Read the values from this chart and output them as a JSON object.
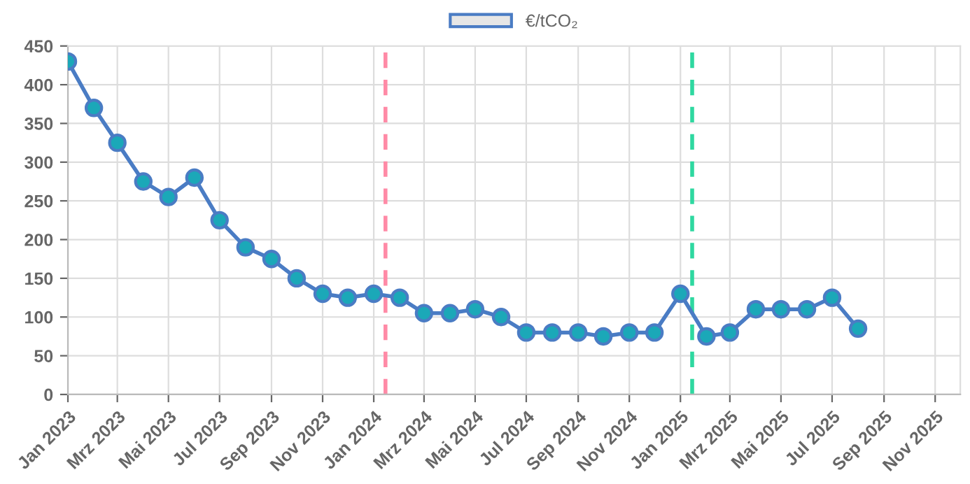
{
  "chart_data": {
    "type": "line",
    "x": [
      "2023-01",
      "2023-02",
      "2023-03",
      "2023-04",
      "2023-05",
      "2023-06",
      "2023-07",
      "2023-08",
      "2023-09",
      "2023-10",
      "2023-11",
      "2023-12",
      "2024-01",
      "2024-02",
      "2024-03",
      "2024-04",
      "2024-05",
      "2024-06",
      "2024-07",
      "2024-08",
      "2024-09",
      "2024-10",
      "2024-11",
      "2024-12",
      "2025-01",
      "2025-02",
      "2025-03",
      "2025-04",
      "2025-05",
      "2025-06",
      "2025-07",
      "2025-08"
    ],
    "series": [
      {
        "name": "€/tCO₂",
        "color": "#4a7cc4",
        "values": [
          430,
          370,
          325,
          275,
          255,
          280,
          225,
          190,
          175,
          150,
          130,
          125,
          130,
          125,
          105,
          105,
          110,
          100,
          80,
          80,
          80,
          75,
          80,
          80,
          130,
          75,
          80,
          110,
          110,
          110,
          125,
          85
        ]
      }
    ],
    "marker": "circle",
    "line_style": "solid",
    "legend": "top",
    "grid": true,
    "xlim": [
      "2023-01",
      "2025-12"
    ],
    "xticks": [
      {
        "value": "2023-01",
        "label": "Jan 2023"
      },
      {
        "value": "2023-03",
        "label": "Mrz 2023"
      },
      {
        "value": "2023-05",
        "label": "Mai 2023"
      },
      {
        "value": "2023-07",
        "label": "Jul 2023"
      },
      {
        "value": "2023-09",
        "label": "Sep 2023"
      },
      {
        "value": "2023-11",
        "label": "Nov 2023"
      },
      {
        "value": "2024-01",
        "label": "Jan 2024"
      },
      {
        "value": "2024-03",
        "label": "Mrz 2024"
      },
      {
        "value": "2024-05",
        "label": "Mai 2024"
      },
      {
        "value": "2024-07",
        "label": "Jul 2024"
      },
      {
        "value": "2024-09",
        "label": "Sep 2024"
      },
      {
        "value": "2024-11",
        "label": "Nov 2024"
      },
      {
        "value": "2025-01",
        "label": "Jan 2025"
      },
      {
        "value": "2025-03",
        "label": "Mrz 2025"
      },
      {
        "value": "2025-05",
        "label": "Mai 2025"
      },
      {
        "value": "2025-07",
        "label": "Jul 2025"
      },
      {
        "value": "2025-09",
        "label": "Sep 2025"
      },
      {
        "value": "2025-11",
        "label": "Nov 2025"
      }
    ],
    "ylim": [
      0,
      450
    ],
    "yticks": [
      0,
      50,
      100,
      150,
      200,
      250,
      300,
      350,
      400,
      450
    ],
    "ref_lines": [
      {
        "axis": "x",
        "value": "2024-01-15",
        "color": "#ff8aa6",
        "line_style": "dashed"
      },
      {
        "axis": "x",
        "value": "2025-01-15",
        "color": "#2ed8a0",
        "line_style": "dashed"
      }
    ]
  }
}
